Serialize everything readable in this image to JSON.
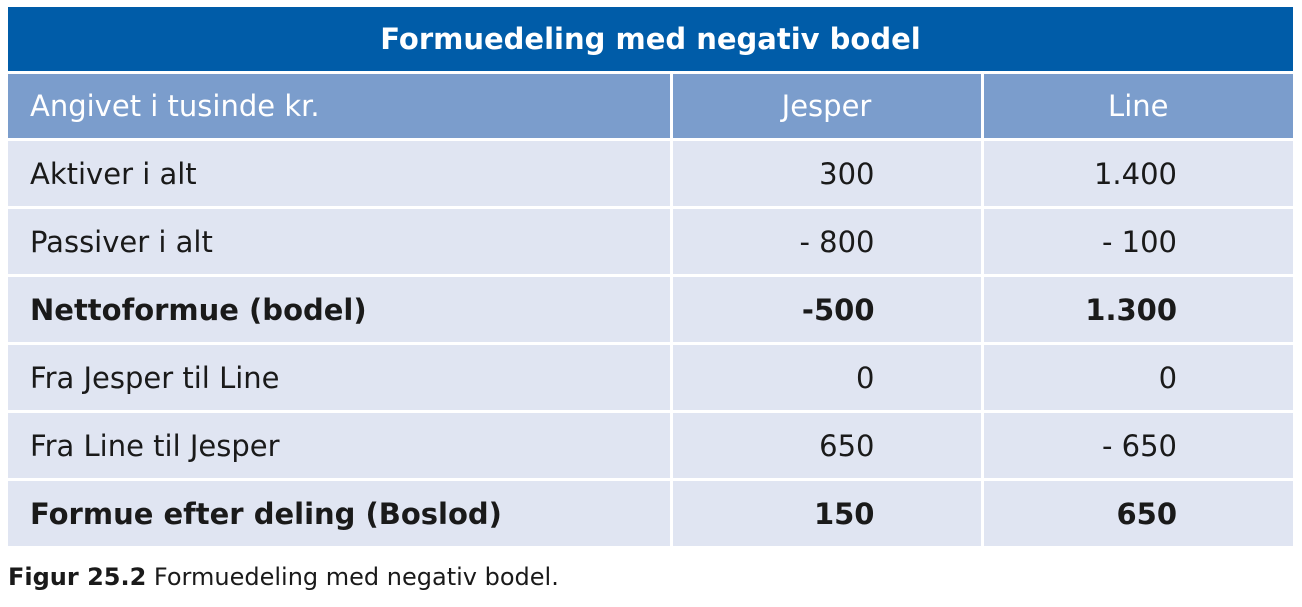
{
  "table": {
    "title": "Formuedeling med negativ bodel",
    "header": {
      "label": "Angivet i tusinde kr.",
      "col1": "Jesper",
      "col2": "Line"
    },
    "rows": [
      {
        "label": "Aktiver i alt",
        "jesper": "300",
        "line": "1.400",
        "bold": false
      },
      {
        "label": "Passiver i alt",
        "jesper": "- 800",
        "line": "- 100",
        "bold": false
      },
      {
        "label": "Nettoformue (bodel)",
        "jesper": "-500",
        "line": "1.300",
        "bold": true
      },
      {
        "label": "Fra Jesper til Line",
        "jesper": "0",
        "line": "0",
        "bold": false
      },
      {
        "label": "Fra Line til Jesper",
        "jesper": "650",
        "line": "- 650",
        "bold": false
      },
      {
        "label": "Formue efter deling (Boslod)",
        "jesper": "150",
        "line": "650",
        "bold": true
      }
    ]
  },
  "caption": {
    "label": "Figur 25.2",
    "text": " Formuedeling med negativ bodel."
  },
  "colors": {
    "title_bg": "#005ca8",
    "header_bg": "#7b9dcc",
    "row_bg": "#e0e5f2"
  }
}
